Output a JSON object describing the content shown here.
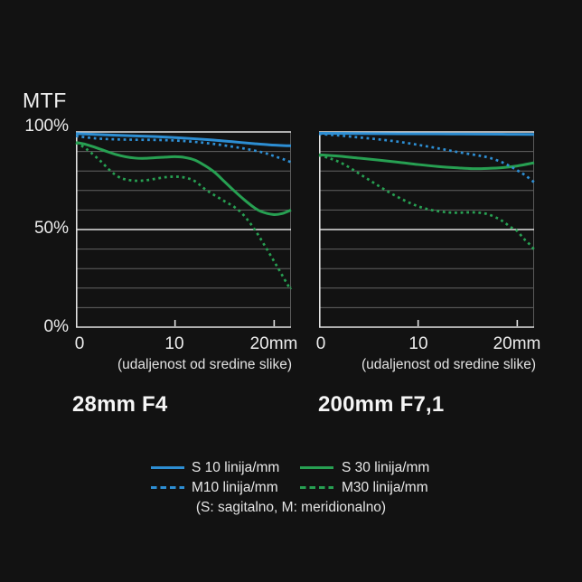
{
  "heading": {
    "label": "MTF"
  },
  "chart_data": [
    {
      "type": "line",
      "title": "28mm F4",
      "xlabel": "(udaljenost od sredine slike)",
      "ylabel": "MTF",
      "xlim": [
        0,
        21.7
      ],
      "ylim": [
        0,
        100
      ],
      "x_ticks": [
        0,
        10,
        20
      ],
      "x_tick_labels": [
        "0",
        "10",
        "20mm"
      ],
      "y_tick_labels": [
        "100%",
        "50%",
        "0%"
      ],
      "grid": {
        "step_pct": 10,
        "major_every_pct": 50
      },
      "series": [
        {
          "name": "M30 linija/mm",
          "style": "dashed",
          "color": "#27a052",
          "points": [
            [
              0,
              94.4
            ],
            [
              0.7,
              92.5
            ],
            [
              1.5,
              89.5
            ],
            [
              2.5,
              85.0
            ],
            [
              3.5,
              80.0
            ],
            [
              4.3,
              77.0
            ],
            [
              5,
              75.7
            ],
            [
              6,
              75.0
            ],
            [
              7,
              75.2
            ],
            [
              8,
              76.0
            ],
            [
              9,
              76.8
            ],
            [
              10,
              77.1
            ],
            [
              11,
              76.6
            ],
            [
              12,
              74.8
            ],
            [
              13,
              70.8
            ],
            [
              14,
              67.5
            ],
            [
              15,
              64.5
            ],
            [
              16,
              61.5
            ],
            [
              16.9,
              57.5
            ],
            [
              18,
              50.3
            ],
            [
              19.2,
              40.5
            ],
            [
              20.4,
              30.2
            ],
            [
              21.5,
              20.6
            ],
            [
              21.7,
              20.0
            ]
          ]
        },
        {
          "name": "S 30 linija/mm",
          "style": "solid",
          "color": "#27a052",
          "points": [
            [
              0,
              94.6
            ],
            [
              1,
              93.6
            ],
            [
              2,
              92.0
            ],
            [
              3,
              90.2
            ],
            [
              4,
              88.5
            ],
            [
              5,
              87.3
            ],
            [
              6,
              86.6
            ],
            [
              7,
              86.5
            ],
            [
              8,
              86.8
            ],
            [
              9,
              87.1
            ],
            [
              10,
              87.3
            ],
            [
              11,
              86.9
            ],
            [
              12,
              85.6
            ],
            [
              13,
              82.8
            ],
            [
              14,
              79.3
            ],
            [
              15,
              74.5
            ],
            [
              16,
              69.7
            ],
            [
              17,
              65.2
            ],
            [
              18,
              61.2
            ],
            [
              18.7,
              59.2
            ],
            [
              19.9,
              57.7
            ],
            [
              20.8,
              58.2
            ],
            [
              21.7,
              60.0
            ]
          ]
        },
        {
          "name": "M10 linija/mm",
          "style": "dashed",
          "color": "#2d8ed3",
          "points": [
            [
              0,
              97.9
            ],
            [
              2,
              96.7
            ],
            [
              4,
              96.2
            ],
            [
              6,
              96.0
            ],
            [
              8,
              95.9
            ],
            [
              10,
              95.6
            ],
            [
              12,
              94.9
            ],
            [
              14,
              93.8
            ],
            [
              16,
              92.3
            ],
            [
              17.5,
              91.0
            ],
            [
              19,
              89.3
            ],
            [
              20,
              87.6
            ],
            [
              21,
              85.9
            ],
            [
              21.7,
              84.5
            ]
          ]
        },
        {
          "name": "S 10 linija/mm",
          "style": "solid",
          "color": "#2d8ed3",
          "points": [
            [
              0,
              99.2
            ],
            [
              2,
              98.7
            ],
            [
              4,
              98.3
            ],
            [
              6,
              98.0
            ],
            [
              8,
              97.6
            ],
            [
              10,
              97.1
            ],
            [
              12,
              96.5
            ],
            [
              14,
              95.8
            ],
            [
              16,
              94.9
            ],
            [
              18,
              94.0
            ],
            [
              19.5,
              93.4
            ],
            [
              21,
              93.0
            ],
            [
              21.7,
              92.9
            ]
          ]
        }
      ]
    },
    {
      "type": "line",
      "title": "200mm F7,1",
      "xlabel": "(udaljenost od sredine slike)",
      "ylabel": "MTF",
      "xlim": [
        0,
        21.7
      ],
      "ylim": [
        0,
        100
      ],
      "x_ticks": [
        0,
        10,
        20
      ],
      "x_tick_labels": [
        "0",
        "10",
        "20mm"
      ],
      "y_tick_labels": [
        "100%",
        "50%",
        "0%"
      ],
      "grid": {
        "step_pct": 10,
        "major_every_pct": 50
      },
      "series": [
        {
          "name": "M30 linija/mm",
          "style": "dashed",
          "color": "#27a052",
          "points": [
            [
              0,
              88.0
            ],
            [
              1,
              86.6
            ],
            [
              2,
              84.7
            ],
            [
              3,
              82.0
            ],
            [
              4,
              78.8
            ],
            [
              5,
              75.6
            ],
            [
              6,
              72.4
            ],
            [
              7,
              69.3
            ],
            [
              8,
              66.5
            ],
            [
              9,
              64.0
            ],
            [
              10,
              61.9
            ],
            [
              11,
              60.4
            ],
            [
              12,
              59.4
            ],
            [
              13,
              58.8
            ],
            [
              14,
              58.6
            ],
            [
              15,
              58.8
            ],
            [
              16,
              58.7
            ],
            [
              17,
              57.9
            ],
            [
              18,
              55.8
            ],
            [
              18.7,
              53.7
            ],
            [
              19.3,
              51.3
            ],
            [
              19.9,
              49.7
            ],
            [
              20.7,
              45.1
            ],
            [
              21.2,
              42.7
            ],
            [
              21.7,
              39.8
            ]
          ]
        },
        {
          "name": "S 30 linija/mm",
          "style": "solid",
          "color": "#27a052",
          "points": [
            [
              0,
              88.3
            ],
            [
              2,
              87.6
            ],
            [
              4,
              86.6
            ],
            [
              6,
              85.6
            ],
            [
              8,
              84.5
            ],
            [
              10,
              83.3
            ],
            [
              12,
              82.3
            ],
            [
              14,
              81.6
            ],
            [
              15.5,
              81.2
            ],
            [
              17,
              81.3
            ],
            [
              18.5,
              81.7
            ],
            [
              20,
              82.6
            ],
            [
              21.7,
              84.2
            ]
          ]
        },
        {
          "name": "M10 linija/mm",
          "style": "dashed",
          "color": "#2d8ed3",
          "points": [
            [
              0,
              99.0
            ],
            [
              2,
              98.2
            ],
            [
              4,
              97.2
            ],
            [
              6,
              96.2
            ],
            [
              8,
              95.0
            ],
            [
              10,
              93.4
            ],
            [
              12,
              91.6
            ],
            [
              14,
              89.7
            ],
            [
              16,
              88.0
            ],
            [
              17,
              87.0
            ],
            [
              18,
              85.4
            ],
            [
              19,
              83.2
            ],
            [
              20,
              80.3
            ],
            [
              20.8,
              77.8
            ],
            [
              21.7,
              74.2
            ]
          ]
        },
        {
          "name": "S 10 linija/mm",
          "style": "solid",
          "color": "#2d8ed3",
          "points": [
            [
              0,
              99.3
            ],
            [
              4,
              99.2
            ],
            [
              8,
              99.1
            ],
            [
              12,
              99.0
            ],
            [
              16,
              98.9
            ],
            [
              19,
              98.8
            ],
            [
              21.7,
              98.7
            ]
          ]
        }
      ]
    }
  ],
  "legend": {
    "items": [
      {
        "label": "S 10 linija/mm",
        "style": "solid",
        "color": "#2d8ed3"
      },
      {
        "label": "S 30 linija/mm",
        "style": "solid",
        "color": "#27a052"
      },
      {
        "label": "M10 linija/mm",
        "style": "dashed",
        "color": "#2d8ed3"
      },
      {
        "label": "M30 linija/mm",
        "style": "dashed",
        "color": "#27a052"
      }
    ],
    "note": "(S: sagitalno, M: meridionalno)"
  },
  "colors": {
    "background": "#121212",
    "text": "#ececec",
    "grid_major": "#e2e2e2",
    "grid_minor": "#636363",
    "border_right": "#5a5a5a",
    "blue": "#2d8ed3",
    "green": "#27a052"
  }
}
